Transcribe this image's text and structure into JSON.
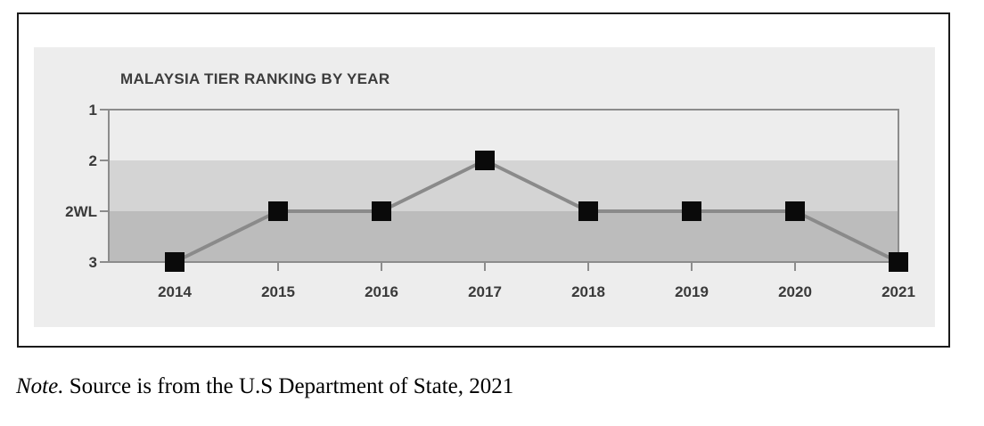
{
  "chart_data": {
    "type": "line",
    "title": "MALAYSIA TIER RANKING BY YEAR",
    "categories": [
      "2014",
      "2015",
      "2016",
      "2017",
      "2018",
      "2019",
      "2020",
      "2021"
    ],
    "y_tick_labels": [
      "1",
      "2",
      "2WL",
      "3"
    ],
    "values": [
      "3",
      "2WL",
      "2WL",
      "2",
      "2WL",
      "2WL",
      "2WL",
      "3"
    ],
    "xlabel": "",
    "ylabel": "",
    "colors": {
      "line": "#8a8a8a",
      "marker": "#0a0a0a",
      "panel": "#ededed",
      "band_tier2": "#d4d4d4",
      "band_tier2wl": "#bcbcbc",
      "axis": "#8c8c8c"
    }
  },
  "note": {
    "label": "Note.",
    "text": " Source is from the U.S Department of State, 2021"
  }
}
